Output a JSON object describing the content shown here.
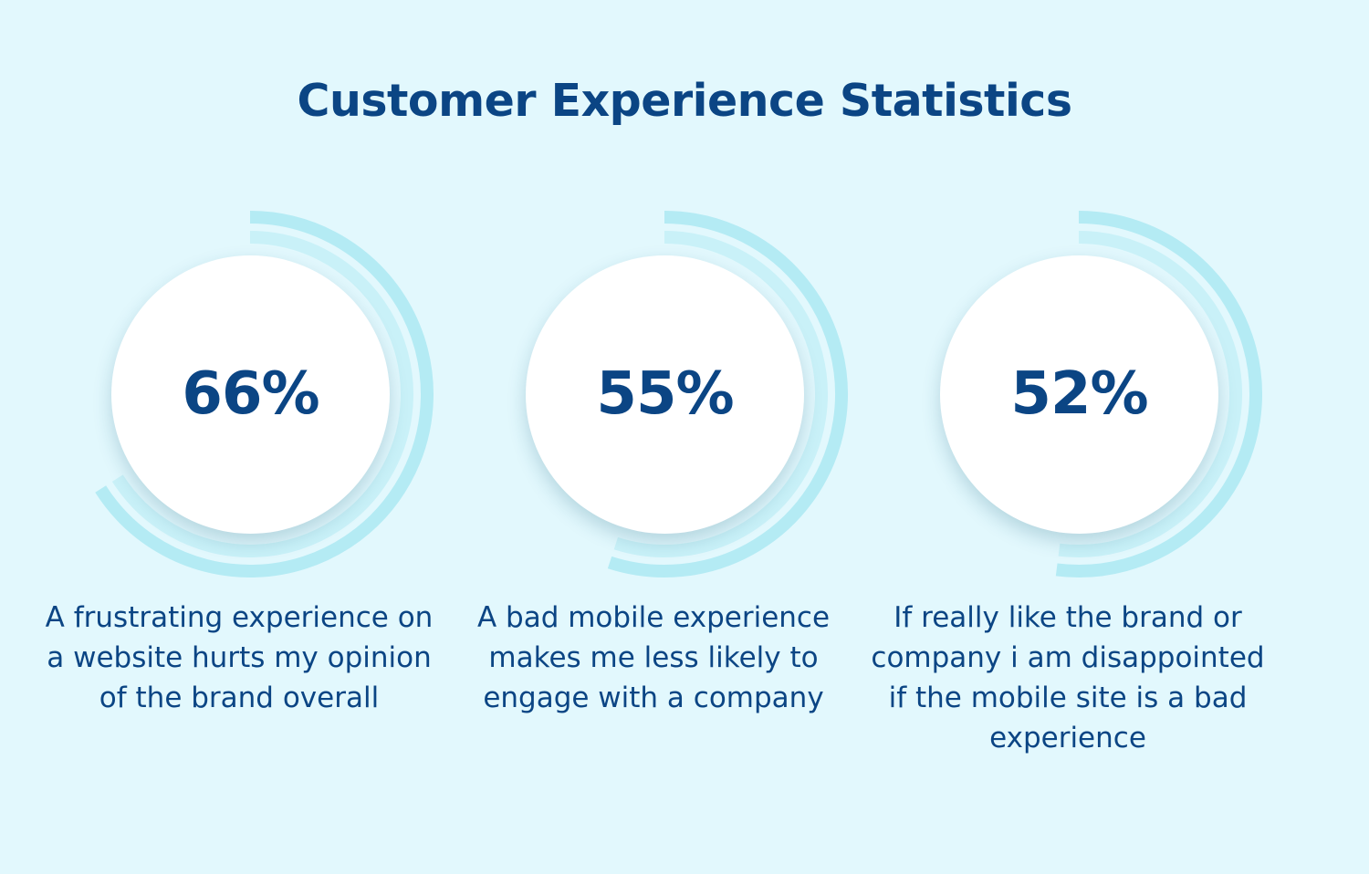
{
  "title": "Customer Experience Statistics",
  "colors": {
    "background": "#e2f8fd",
    "text": "#0b4584",
    "ring": "#b4ebf4",
    "ring_inner": "#c9f1f8",
    "disc": "#ffffff"
  },
  "chart_data": [
    {
      "type": "pie",
      "value": 66,
      "label": "66%",
      "description": "A frustrating experience on a website hurts my opinion of the brand overall"
    },
    {
      "type": "pie",
      "value": 55,
      "label": "55%",
      "description": "A bad mobile experience makes me less likely to engage with a company"
    },
    {
      "type": "pie",
      "value": 52,
      "label": "52%",
      "description": "If really like the brand or company i am disappointed if the mobile site is a bad experience"
    }
  ]
}
